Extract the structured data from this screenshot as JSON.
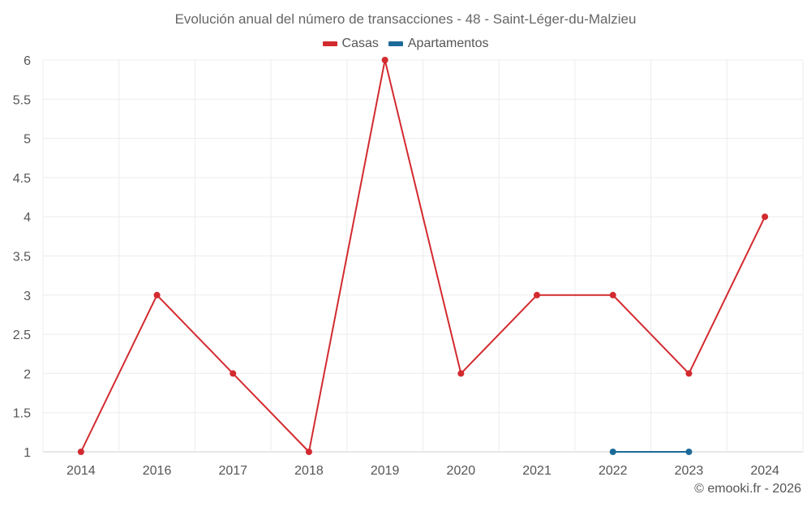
{
  "chart_data": {
    "type": "line",
    "title": "Evolución anual del número de transacciones - 48 - Saint-Léger-du-Malzieu",
    "categories": [
      "2014",
      "2016",
      "2017",
      "2018",
      "2019",
      "2020",
      "2021",
      "2022",
      "2023",
      "2024"
    ],
    "series": [
      {
        "name": "Casas",
        "color": "#d32a2f",
        "values": [
          1,
          3,
          2,
          1,
          6,
          2,
          3,
          3,
          2,
          4
        ]
      },
      {
        "name": "Apartamentos",
        "color": "#1d6a99",
        "values": [
          null,
          null,
          null,
          null,
          null,
          null,
          null,
          1,
          1,
          null
        ]
      }
    ],
    "yticks": [
      "1",
      "1.5",
      "2",
      "2.5",
      "3",
      "3.5",
      "4",
      "4.5",
      "5",
      "5.5",
      "6"
    ],
    "ylim": [
      1,
      6
    ],
    "xlabel": "",
    "ylabel": "",
    "grid": true,
    "legend_position": "top-center"
  },
  "credit": "© emooki.fr - 2026"
}
